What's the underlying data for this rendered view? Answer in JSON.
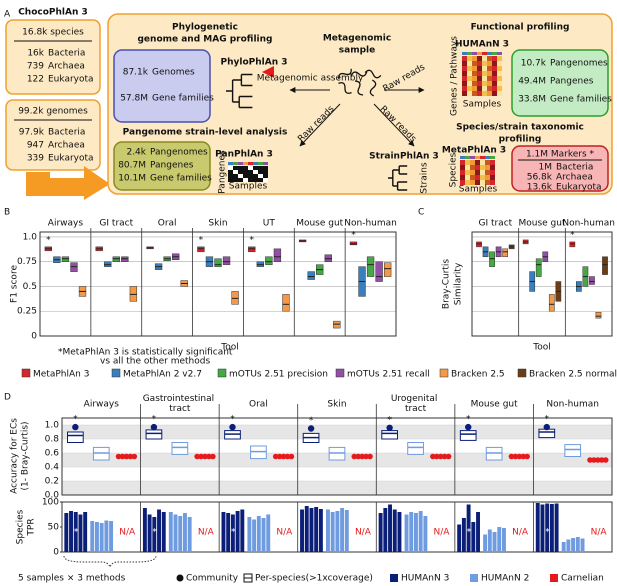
{
  "panel_labels": [
    "A",
    "B",
    "C",
    "D"
  ],
  "diagram": {
    "chocophlan": {
      "title": "ChocoPhlAn 3",
      "species_total": "16.8k species",
      "species_rows": [
        [
          "16k",
          "Bacteria"
        ],
        [
          "739",
          "Archaea"
        ],
        [
          "122",
          "Eukaryota"
        ]
      ],
      "genomes_total": "99.2k genomes",
      "genome_rows": [
        [
          "97.9k",
          "Bacteria"
        ],
        [
          "947",
          "Archaea"
        ],
        [
          "339",
          "Eukaryota"
        ]
      ]
    },
    "center": {
      "title_lines": [
        "Metagenomic",
        "sample"
      ],
      "arrow_labels": [
        "Metagenomic assembly",
        "Raw reads",
        "Raw reads",
        "Raw reads"
      ]
    },
    "phylogenetic": {
      "heading_lines": [
        "Phylogenetic",
        "genome and MAG profiling"
      ],
      "tool": "PhyloPhlAn 3",
      "rows": [
        [
          "87.1k",
          "Genomes"
        ],
        [
          "57.8M",
          "Gene families"
        ]
      ]
    },
    "pangenome": {
      "heading": "Pangenome strain-level analysis",
      "tool": "PanPhlAn 3",
      "rows": [
        [
          "2.4k",
          "Pangenomes"
        ],
        [
          "80.7M",
          "Pangenes"
        ],
        [
          "10.1M",
          "Gene families"
        ]
      ],
      "axis_labels": [
        "Pangenes",
        "Samples"
      ]
    },
    "functional": {
      "heading": "Functional profiling",
      "tool": "HUMAnN 3",
      "axis_labels": [
        "Genes / Pathways",
        "Samples"
      ],
      "rows": [
        [
          "10.7k",
          "Pangenomes"
        ],
        [
          "49.4M",
          "Pangenes"
        ],
        [
          "33.8M",
          "Gene families"
        ]
      ]
    },
    "strain": {
      "tool": "StrainPhlAn 3",
      "axis_label": "Strains"
    },
    "taxonomic": {
      "heading_lines": [
        "Species/strain taxonomic",
        "profiling"
      ],
      "tool": "MetaPhlAn 3",
      "axis_labels": [
        "Species",
        "Samples"
      ],
      "markers": "1.1M Markers *",
      "rows": [
        [
          "1M",
          "Bacteria"
        ],
        [
          "56.8k",
          "Archaea"
        ],
        [
          "13.6k",
          "Eukaryota"
        ]
      ]
    }
  },
  "chart_data": [
    {
      "type": "box",
      "y_label": "F1 score",
      "x_label": "Tool",
      "footnote_lines": [
        "*MetaPhlAn 3 is statistically significant",
        "vs all the other methods"
      ],
      "significance_mark": "*",
      "significant": [
        true,
        false,
        false,
        true,
        true,
        false,
        true
      ],
      "categories": [
        "Airways",
        "GI tract",
        "Oral",
        "Skin",
        "UT",
        "Mouse gut",
        "Non-human"
      ],
      "ylim": [
        0,
        1.05
      ],
      "yticks": [
        0,
        0.25,
        0.5,
        0.75,
        {
          "value": 1,
          "label": "1.0"
        }
      ],
      "grid": true,
      "series": [
        {
          "name": "MetaPhlAn 3",
          "color": "#d7262b",
          "q1": [
            0.86,
            0.86,
            0.88,
            0.85,
            0.85,
            0.95,
            0.92
          ],
          "median": [
            0.88,
            0.88,
            0.89,
            0.88,
            0.88,
            0.96,
            0.93
          ],
          "q3": [
            0.9,
            0.9,
            0.9,
            0.9,
            0.9,
            0.97,
            0.95
          ]
        },
        {
          "name": "MetaPhlAn 2 v2.7",
          "color": "#3a7fbd",
          "q1": [
            0.74,
            0.7,
            0.67,
            0.7,
            0.7,
            0.57,
            0.4
          ],
          "median": [
            0.77,
            0.72,
            0.7,
            0.75,
            0.72,
            0.6,
            0.55
          ],
          "q3": [
            0.8,
            0.75,
            0.73,
            0.8,
            0.75,
            0.65,
            0.7
          ]
        },
        {
          "name": "mOTUs 2.51 precision",
          "color": "#45a845",
          "q1": [
            0.75,
            0.75,
            0.76,
            0.7,
            0.72,
            0.62,
            0.6
          ],
          "median": [
            0.78,
            0.78,
            0.78,
            0.72,
            0.75,
            0.67,
            0.72
          ],
          "q3": [
            0.8,
            0.8,
            0.8,
            0.78,
            0.8,
            0.72,
            0.8
          ]
        },
        {
          "name": "mOTUs 2.51 recall",
          "color": "#9150a3",
          "q1": [
            0.65,
            0.75,
            0.77,
            0.72,
            0.75,
            0.75,
            0.55
          ],
          "median": [
            0.7,
            0.78,
            0.8,
            0.75,
            0.8,
            0.78,
            0.6
          ],
          "q3": [
            0.74,
            0.8,
            0.83,
            0.8,
            0.88,
            0.82,
            0.75
          ]
        },
        {
          "name": "Bracken 2.5",
          "color": "#f2994a",
          "q1": [
            0.4,
            0.35,
            0.5,
            0.32,
            0.25,
            0.08,
            0.6
          ],
          "median": [
            0.45,
            0.42,
            0.53,
            0.38,
            0.32,
            0.12,
            0.68
          ],
          "q3": [
            0.5,
            0.5,
            0.56,
            0.45,
            0.42,
            0.15,
            0.74
          ]
        }
      ]
    },
    {
      "type": "box",
      "y_label_lines": [
        "Bray-Curtis",
        "Similarity"
      ],
      "x_label": "Tool",
      "significance_mark": "*",
      "significant": [
        false,
        false,
        true
      ],
      "categories": [
        "GI tract",
        "Mouse gut",
        "Non-human"
      ],
      "ylim": [
        0,
        1.05
      ],
      "yticks": [
        0,
        0.25,
        0.5,
        0.75,
        1
      ],
      "grid": true,
      "series": [
        {
          "name": "MetaPhlAn 3",
          "color": "#d7262b",
          "q1": [
            0.9,
            0.93,
            0.9
          ],
          "median": [
            0.93,
            0.95,
            0.93
          ],
          "q3": [
            0.95,
            0.97,
            0.95
          ]
        },
        {
          "name": "MetaPhlAn 2 v2.7",
          "color": "#3a7fbd",
          "q1": [
            0.8,
            0.45,
            0.45
          ],
          "median": [
            0.85,
            0.55,
            0.5
          ],
          "q3": [
            0.9,
            0.65,
            0.55
          ]
        },
        {
          "name": "mOTUs 2.51 precision",
          "color": "#45a845",
          "q1": [
            0.7,
            0.6,
            0.5
          ],
          "median": [
            0.78,
            0.72,
            0.6
          ],
          "q3": [
            0.85,
            0.78,
            0.7
          ]
        },
        {
          "name": "mOTUs 2.51 recall",
          "color": "#9150a3",
          "q1": [
            0.8,
            0.75,
            0.52
          ],
          "median": [
            0.85,
            0.8,
            0.55
          ],
          "q3": [
            0.9,
            0.85,
            0.6
          ]
        },
        {
          "name": "Bracken 2.5",
          "color": "#f2994a",
          "q1": [
            0.8,
            0.25,
            0.18
          ],
          "median": [
            0.85,
            0.32,
            0.2
          ],
          "q3": [
            0.88,
            0.42,
            0.24
          ]
        },
        {
          "name": "Bracken 2.5 normalized",
          "color": "#6b3d14",
          "q1": [
            0.88,
            0.35,
            0.62
          ],
          "median": [
            0.9,
            0.45,
            0.72
          ],
          "q3": [
            0.92,
            0.55,
            0.8
          ]
        }
      ]
    },
    {
      "type": "box_bar",
      "categories": [
        "Airways",
        "Gastrointestinal tract",
        "Oral",
        "Skin",
        "Urogenital tract",
        "Mouse gut",
        "Non-human"
      ],
      "accuracy_label_lines": [
        "Accuracy for ECs",
        "(1- Bray-Curtis)"
      ],
      "tpr_label_lines": [
        "Species",
        "TPR"
      ],
      "ylim": [
        0,
        1.1
      ],
      "yticks": [
        {
          "value": 0,
          "label": "0.0"
        },
        0.2,
        0.4,
        0.6,
        0.8,
        {
          "value": 1,
          "label": "1.0"
        }
      ],
      "tpr_ylim": [
        0,
        100
      ],
      "tpr_yticks": [
        0,
        50,
        100
      ],
      "significance_mark": "*",
      "accuracy_significant": [
        true,
        true,
        true,
        true,
        true,
        true,
        true
      ],
      "tpr_significant": [
        true,
        true,
        true,
        false,
        false,
        true,
        true
      ],
      "na_label": "N/A",
      "samples_note": "5 samples × 3 methods",
      "legend_community": "Community",
      "legend_per_species": "Per-species(>1xcoverage)",
      "series": [
        {
          "name": "HUMAnN 3",
          "color": "#0b1f78",
          "community": [
            0.97,
            0.97,
            0.97,
            0.95,
            0.96,
            0.97,
            0.97
          ],
          "per_species_q1": [
            0.75,
            0.8,
            0.8,
            0.75,
            0.8,
            0.78,
            0.82
          ],
          "per_species": [
            0.85,
            0.88,
            0.87,
            0.82,
            0.88,
            0.87,
            0.9
          ],
          "per_species_q3": [
            0.9,
            0.93,
            0.92,
            0.88,
            0.92,
            0.92,
            0.94
          ],
          "tpr": [
            [
              78,
              82,
              80,
              75,
              80
            ],
            [
              88,
              75,
              70,
              85,
              80
            ],
            [
              80,
              78,
              75,
              82,
              85
            ],
            [
              85,
              92,
              88,
              90,
              86
            ],
            [
              78,
              88,
              95,
              85,
              80
            ],
            [
              55,
              68,
              95,
              60,
              80
            ],
            [
              98,
              95,
              97,
              96,
              97
            ]
          ]
        },
        {
          "name": "HUMAnN 2",
          "color": "#6f9be0",
          "per_species_q1": [
            0.5,
            0.58,
            0.52,
            0.5,
            0.58,
            0.5,
            0.55
          ],
          "per_species": [
            0.6,
            0.68,
            0.62,
            0.6,
            0.68,
            0.6,
            0.65
          ],
          "per_species_q3": [
            0.68,
            0.75,
            0.7,
            0.68,
            0.75,
            0.68,
            0.72
          ],
          "tpr": [
            [
              62,
              60,
              58,
              63,
              62
            ],
            [
              80,
              75,
              72,
              78,
              70
            ],
            [
              70,
              65,
              72,
              68,
              75
            ],
            [
              85,
              80,
              82,
              88,
              84
            ],
            [
              75,
              80,
              78,
              82,
              72
            ],
            [
              35,
              45,
              40,
              50,
              48
            ],
            [
              20,
              25,
              28,
              30,
              27
            ]
          ]
        },
        {
          "name": "Carnelian",
          "color": "#e41a1c",
          "community": [
            0.55,
            0.55,
            0.55,
            0.55,
            0.55,
            0.55,
            0.5
          ]
        }
      ]
    }
  ]
}
